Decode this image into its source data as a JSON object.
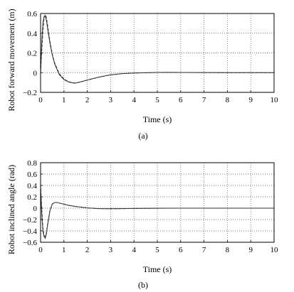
{
  "chart_data": [
    {
      "type": "line",
      "caption": "(a)",
      "xlabel": "Time (s)",
      "ylabel": "Robot forward movement (m)",
      "xlim": [
        0,
        10
      ],
      "ylim": [
        -0.2,
        0.6
      ],
      "xticks": [
        0,
        1,
        2,
        3,
        4,
        5,
        6,
        7,
        8,
        9,
        10
      ],
      "yticks": [
        -0.2,
        0,
        0.2,
        0.4,
        0.6
      ],
      "ytick_labels": [
        "−0.2",
        "0",
        "0.2",
        "0.4",
        "0.6"
      ],
      "grid": true,
      "series": [
        {
          "style": "solid",
          "color": "#333333",
          "x": [
            0,
            0.05,
            0.1,
            0.15,
            0.2,
            0.25,
            0.3,
            0.4,
            0.5,
            0.6,
            0.8,
            1.0,
            1.2,
            1.4,
            1.5,
            1.6,
            1.8,
            2.0,
            2.5,
            3.0,
            3.5,
            4.0,
            4.5,
            5.0,
            5.5,
            6.0,
            7.0,
            8.0,
            9.0,
            10.0
          ],
          "y": [
            0,
            0.3,
            0.5,
            0.57,
            0.57,
            0.53,
            0.45,
            0.3,
            0.18,
            0.09,
            -0.02,
            -0.07,
            -0.095,
            -0.105,
            -0.105,
            -0.1,
            -0.088,
            -0.075,
            -0.045,
            -0.022,
            -0.01,
            -0.004,
            -0.001,
            0.002,
            0.003,
            0.002,
            0.001,
            0,
            0,
            0
          ]
        },
        {
          "style": "dashed",
          "color": "#333333",
          "x": [
            0,
            0.05,
            0.1,
            0.15,
            0.2,
            0.25,
            0.3,
            0.4,
            0.5,
            0.6,
            0.8,
            1.0,
            1.2,
            1.4,
            1.5,
            1.6,
            1.8,
            2.0,
            2.5,
            3.0,
            3.5,
            4.0,
            4.5,
            5.0,
            5.5,
            6.0,
            7.0,
            8.0,
            9.0,
            10.0
          ],
          "y": [
            0,
            0.22,
            0.42,
            0.55,
            0.59,
            0.56,
            0.48,
            0.32,
            0.19,
            0.1,
            -0.01,
            -0.065,
            -0.092,
            -0.103,
            -0.104,
            -0.1,
            -0.089,
            -0.076,
            -0.046,
            -0.023,
            -0.01,
            -0.004,
            -0.001,
            0.002,
            0.003,
            0.002,
            0.001,
            0,
            0,
            0
          ]
        }
      ]
    },
    {
      "type": "line",
      "caption": "(b)",
      "xlabel": "Time (s)",
      "ylabel": "Robot inclined angle (rad)",
      "xlim": [
        0,
        10
      ],
      "ylim": [
        -0.6,
        0.8
      ],
      "xticks": [
        0,
        1,
        2,
        3,
        4,
        5,
        6,
        7,
        8,
        9,
        10
      ],
      "yticks": [
        -0.6,
        -0.4,
        -0.2,
        0,
        0.2,
        0.4,
        0.6,
        0.8
      ],
      "ytick_labels": [
        "−0.6",
        "−0.4",
        "−0.2",
        "0",
        "0.2",
        "0.4",
        "0.6",
        "0.8"
      ],
      "grid": true,
      "series": [
        {
          "style": "solid",
          "color": "#333333",
          "x": [
            0,
            0.05,
            0.1,
            0.15,
            0.2,
            0.25,
            0.3,
            0.4,
            0.5,
            0.6,
            0.7,
            0.8,
            1.0,
            1.2,
            1.5,
            2.0,
            2.5,
            3.0,
            3.5,
            4.0,
            5.0,
            6.0,
            7.0,
            8.0,
            9.0,
            10.0
          ],
          "y": [
            0.35,
            -0.1,
            -0.4,
            -0.5,
            -0.53,
            -0.45,
            -0.3,
            -0.05,
            0.07,
            0.1,
            0.1,
            0.09,
            0.07,
            0.05,
            0.03,
            0.005,
            -0.008,
            -0.01,
            -0.008,
            -0.005,
            -0.001,
            0,
            0,
            0,
            0,
            0
          ]
        },
        {
          "style": "dashed",
          "color": "#333333",
          "x": [
            0,
            0.05,
            0.1,
            0.15,
            0.2,
            0.25,
            0.3,
            0.4,
            0.5,
            0.6,
            0.7,
            0.8,
            1.0,
            1.2,
            1.5,
            2.0,
            2.5,
            3.0,
            3.5,
            4.0,
            5.0,
            6.0,
            7.0,
            8.0,
            9.0,
            10.0
          ],
          "y": [
            0.42,
            0.0,
            -0.35,
            -0.48,
            -0.5,
            -0.43,
            -0.28,
            -0.04,
            0.075,
            0.1,
            0.1,
            0.09,
            0.07,
            0.05,
            0.03,
            0.005,
            -0.008,
            -0.01,
            -0.008,
            -0.005,
            -0.001,
            0,
            0,
            0,
            0,
            0
          ]
        }
      ]
    }
  ]
}
